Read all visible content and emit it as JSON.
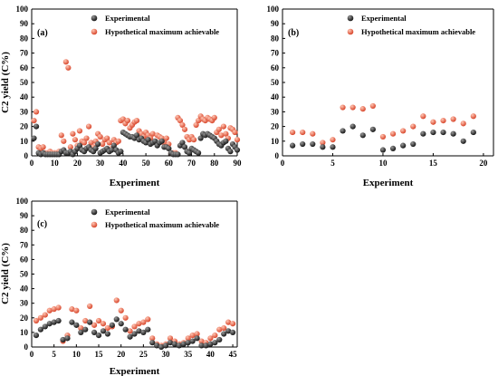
{
  "colors": {
    "experimental": "#141414",
    "experimental_highlight": "#9a9a9a",
    "hypothetical": "#d8452a",
    "hypothetical_highlight": "#ffc7b5"
  },
  "chart_data": [
    {
      "id": "a",
      "type": "scatter",
      "panel_label": "(a)",
      "xlabel": "Experiment",
      "ylabel": "C2 yield (C%)",
      "xlim": [
        0,
        90
      ],
      "ylim": [
        0,
        100
      ],
      "xticks": [
        0,
        10,
        20,
        30,
        40,
        50,
        60,
        70,
        80,
        90
      ],
      "yticks": [
        0,
        10,
        20,
        30,
        40,
        50,
        60,
        70,
        80,
        90,
        100
      ],
      "legend_position": "top-center",
      "series": [
        {
          "name": "Experimental",
          "x": [
            1,
            2,
            3,
            4,
            5,
            6,
            7,
            8,
            9,
            10,
            11,
            12,
            13,
            14,
            15,
            16,
            17,
            18,
            19,
            20,
            21,
            22,
            23,
            24,
            25,
            26,
            27,
            28,
            29,
            30,
            31,
            32,
            33,
            34,
            35,
            36,
            37,
            38,
            39,
            40,
            41,
            42,
            43,
            44,
            45,
            46,
            47,
            48,
            49,
            50,
            51,
            52,
            53,
            54,
            55,
            56,
            57,
            58,
            59,
            60,
            61,
            62,
            63,
            64,
            65,
            66,
            67,
            68,
            69,
            70,
            71,
            72,
            73,
            74,
            75,
            76,
            77,
            78,
            79,
            80,
            81,
            82,
            83,
            84,
            85,
            86,
            87,
            88,
            89,
            90
          ],
          "y": [
            12,
            20,
            2,
            1,
            2,
            1,
            1,
            1,
            1,
            1,
            1,
            1,
            3,
            4,
            2,
            2,
            3,
            1,
            3,
            5,
            7,
            4,
            3,
            5,
            6,
            4,
            3,
            5,
            8,
            2,
            3,
            4,
            5,
            3,
            4,
            7,
            4,
            2,
            3,
            16,
            15,
            14,
            13,
            13,
            12,
            14,
            11,
            12,
            10,
            9,
            11,
            8,
            9,
            10,
            7,
            9,
            10,
            6,
            6,
            5,
            2,
            1,
            1,
            1,
            7,
            9,
            6,
            3,
            2,
            5,
            4,
            3,
            2,
            12,
            15,
            14,
            15,
            14,
            13,
            12,
            10,
            8,
            7,
            9,
            10,
            5,
            3,
            8,
            6,
            4
          ]
        },
        {
          "name": "Hypothetical maximum achievable",
          "x": [
            1,
            2,
            3,
            4,
            5,
            6,
            7,
            8,
            9,
            10,
            11,
            12,
            13,
            14,
            15,
            16,
            17,
            18,
            19,
            20,
            21,
            22,
            23,
            24,
            25,
            26,
            27,
            28,
            29,
            30,
            31,
            32,
            33,
            34,
            35,
            36,
            37,
            38,
            39,
            40,
            41,
            42,
            43,
            44,
            45,
            46,
            47,
            48,
            49,
            50,
            51,
            52,
            53,
            54,
            55,
            56,
            57,
            58,
            59,
            60,
            61,
            62,
            63,
            64,
            65,
            66,
            67,
            68,
            69,
            70,
            71,
            72,
            73,
            74,
            75,
            76,
            77,
            78,
            79,
            80,
            81,
            82,
            83,
            84,
            85,
            86,
            87,
            88,
            89,
            90
          ],
          "y": [
            24,
            30,
            6,
            5,
            6,
            2,
            2,
            3,
            2,
            2,
            2,
            3,
            14,
            10,
            64,
            60,
            6,
            15,
            11,
            7,
            17,
            10,
            9,
            12,
            20,
            9,
            6,
            10,
            15,
            13,
            8,
            11,
            12,
            9,
            5,
            11,
            9,
            10,
            24,
            25,
            22,
            24,
            19,
            21,
            23,
            24,
            17,
            15,
            13,
            16,
            14,
            12,
            15,
            10,
            14,
            13,
            12,
            9,
            12,
            8,
            2,
            2,
            2,
            26,
            24,
            21,
            18,
            13,
            11,
            13,
            11,
            21,
            24,
            27,
            25,
            24,
            26,
            25,
            24,
            26,
            16,
            18,
            14,
            20,
            15,
            12,
            19,
            18,
            16,
            11
          ]
        }
      ]
    },
    {
      "id": "b",
      "type": "scatter",
      "panel_label": "(b)",
      "xlabel": "Experiment",
      "ylabel": "",
      "xlim": [
        0,
        21
      ],
      "ylim": [
        0,
        100
      ],
      "xticks": [
        0,
        5,
        10,
        15,
        20
      ],
      "yticks": [
        0,
        10,
        20,
        30,
        40,
        50,
        60,
        70,
        80,
        90,
        100
      ],
      "legend_position": "top-center",
      "series": [
        {
          "name": "Experimental",
          "x": [
            1,
            2,
            3,
            4,
            5,
            6,
            7,
            8,
            9,
            10,
            11,
            12,
            13,
            14,
            15,
            16,
            17,
            18,
            19
          ],
          "y": [
            7,
            8,
            8,
            6,
            6,
            17,
            20,
            14,
            18,
            4,
            5,
            7,
            8,
            15,
            16,
            16,
            15,
            10,
            16
          ]
        },
        {
          "name": "Hypothetical maximum achievable",
          "x": [
            1,
            2,
            3,
            4,
            5,
            6,
            7,
            8,
            9,
            10,
            11,
            12,
            13,
            14,
            15,
            16,
            17,
            18,
            19
          ],
          "y": [
            16,
            16,
            15,
            9,
            11,
            33,
            33,
            32,
            34,
            13,
            15,
            17,
            20,
            27,
            23,
            24,
            25,
            22,
            27
          ]
        }
      ]
    },
    {
      "id": "c",
      "type": "scatter",
      "panel_label": "(c)",
      "xlabel": "Experiment",
      "ylabel": "C2 yield (C%)",
      "xlim": [
        0,
        46
      ],
      "ylim": [
        0,
        100
      ],
      "xticks": [
        0,
        5,
        10,
        15,
        20,
        25,
        30,
        35,
        40,
        45
      ],
      "yticks": [
        0,
        10,
        20,
        30,
        40,
        50,
        60,
        70,
        80,
        90,
        100
      ],
      "legend_position": "top-center",
      "series": [
        {
          "name": "Experimental",
          "x": [
            1,
            2,
            3,
            4,
            5,
            6,
            7,
            8,
            9,
            10,
            11,
            12,
            13,
            14,
            15,
            16,
            17,
            18,
            19,
            20,
            21,
            22,
            23,
            24,
            25,
            26,
            27,
            28,
            29,
            30,
            31,
            32,
            33,
            34,
            35,
            36,
            37,
            38,
            39,
            40,
            41,
            42,
            43,
            44,
            45
          ],
          "y": [
            8,
            12,
            14,
            16,
            17,
            18,
            5,
            6,
            17,
            15,
            10,
            12,
            17,
            10,
            8,
            11,
            9,
            15,
            19,
            16,
            12,
            7,
            9,
            11,
            10,
            12,
            3,
            1,
            0,
            1,
            3,
            2,
            1,
            2,
            3,
            4,
            6,
            1,
            1,
            2,
            3,
            5,
            9,
            11,
            10
          ]
        },
        {
          "name": "Hypothetical maximum achievable",
          "x": [
            1,
            2,
            3,
            4,
            5,
            6,
            7,
            8,
            9,
            10,
            11,
            12,
            13,
            14,
            15,
            16,
            17,
            18,
            19,
            20,
            21,
            22,
            23,
            24,
            25,
            26,
            27,
            28,
            29,
            30,
            31,
            32,
            33,
            34,
            35,
            36,
            37,
            38,
            39,
            40,
            41,
            42,
            43,
            44,
            45
          ],
          "y": [
            18,
            20,
            22,
            25,
            26,
            27,
            4,
            8,
            26,
            25,
            13,
            18,
            28,
            15,
            18,
            16,
            13,
            14,
            32,
            25,
            20,
            11,
            14,
            16,
            17,
            19,
            6,
            2,
            1,
            2,
            6,
            4,
            2,
            3,
            6,
            8,
            9,
            4,
            3,
            6,
            8,
            12,
            13,
            17,
            16
          ]
        }
      ]
    }
  ]
}
